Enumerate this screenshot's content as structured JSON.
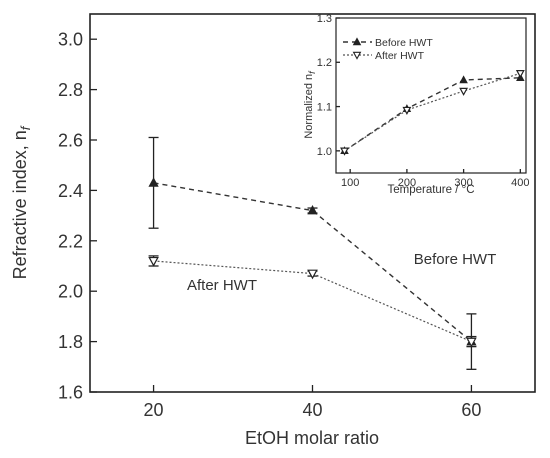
{
  "chart_data": [
    {
      "type": "line",
      "xlabel": "EtOH molar ratio",
      "ylabel": "Refractive index, n",
      "ylabel_sub": "f",
      "xlim": [
        12,
        68
      ],
      "ylim": [
        1.6,
        3.1
      ],
      "xticks": [
        20,
        40,
        60
      ],
      "yticks": [
        1.6,
        1.8,
        2.0,
        2.2,
        2.4,
        2.6,
        2.8,
        3.0
      ],
      "xtick_labels": [
        "20",
        "40",
        "60"
      ],
      "ytick_labels": [
        "1.6",
        "1.8",
        "2.0",
        "2.2",
        "2.4",
        "2.6",
        "2.8",
        "3.0"
      ],
      "x": [
        20,
        40,
        60
      ],
      "series": [
        {
          "name": "Before HWT",
          "values": [
            2.43,
            2.32,
            1.8
          ],
          "error": [
            0.18,
            0.01,
            0.11
          ],
          "marker": "filled-triangle",
          "line": "dashed"
        },
        {
          "name": "After HWT",
          "values": [
            2.12,
            2.07,
            1.8
          ],
          "error": [
            0.02,
            0.01,
            0.02
          ],
          "marker": "open-triangle-down",
          "line": "dotted"
        }
      ],
      "annotations": [
        "Before HWT",
        "After HWT"
      ]
    },
    {
      "type": "line",
      "xlabel": "Temperature / °C",
      "ylabel": "Normalized n",
      "ylabel_sub": "f",
      "xlim": [
        75,
        410
      ],
      "ylim": [
        0.95,
        1.3
      ],
      "xticks": [
        100,
        200,
        300,
        400
      ],
      "yticks": [
        1.0,
        1.1,
        1.2,
        1.3
      ],
      "xtick_labels": [
        "100",
        "200",
        "300",
        "400"
      ],
      "ytick_labels": [
        "1.0",
        "1.1",
        "1.2",
        "1.3"
      ],
      "x": [
        90,
        200,
        300,
        400
      ],
      "series": [
        {
          "name": "Before HWT",
          "values": [
            1.0,
            1.095,
            1.16,
            1.165
          ],
          "marker": "filled-triangle",
          "line": "dashed"
        },
        {
          "name": "After HWT",
          "values": [
            1.0,
            1.092,
            1.135,
            1.175
          ],
          "marker": "open-triangle-down",
          "line": "dotted"
        }
      ],
      "legend": "top-left"
    }
  ],
  "colors": {
    "axis": "#222222",
    "series_before": "#333333",
    "series_after": "#555555",
    "background": "#ffffff"
  }
}
